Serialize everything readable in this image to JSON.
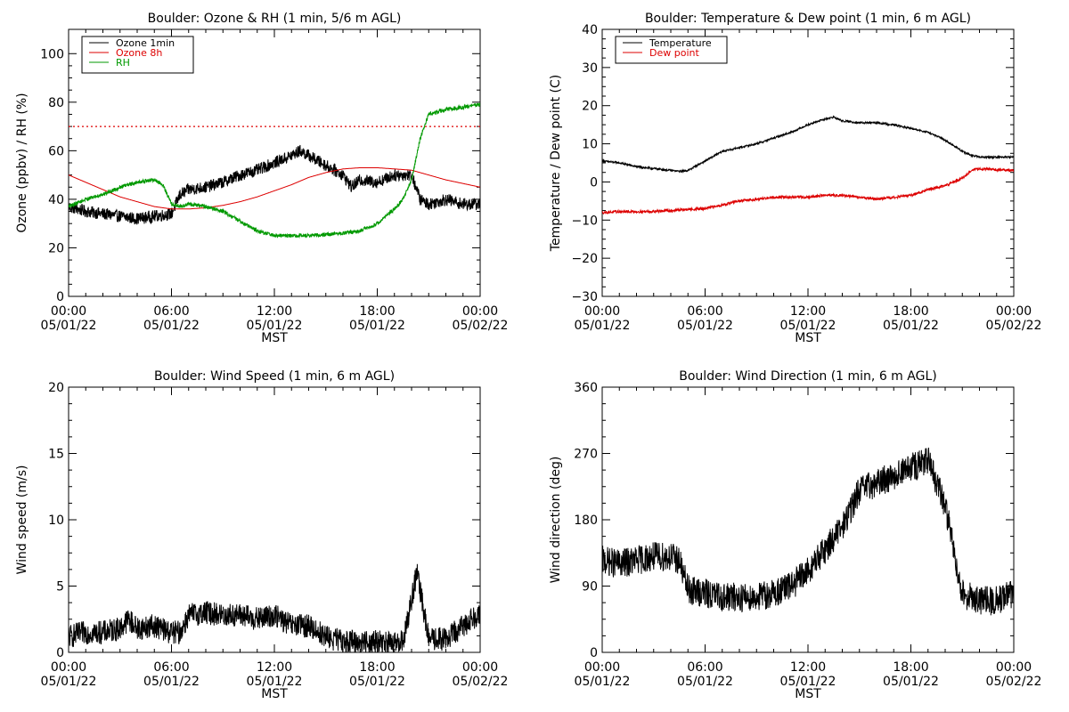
{
  "page": {
    "background": "#ffffff"
  },
  "colors": {
    "ozone_1min": "#000000",
    "ozone_8h": "#dd0000",
    "rh": "#009900",
    "temperature": "#000000",
    "dew_point": "#dd0000",
    "wind": "#000000"
  },
  "chart_data": [
    {
      "id": "ozone-rh",
      "type": "line",
      "title": "Boulder: Ozone & RH (1 min, 5/6 m AGL)",
      "xlabel": "MST",
      "ylabel": "Ozone (ppbv) / RH (%)",
      "xlim": [
        0,
        24
      ],
      "ylim": [
        0,
        110
      ],
      "yticks": [
        0,
        20,
        40,
        60,
        80,
        100
      ],
      "ytick_labels": [
        "0",
        "20",
        "40",
        "60",
        "80",
        "100"
      ],
      "xticks": [
        0,
        6,
        12,
        18,
        24
      ],
      "xtick_time": [
        "00:00",
        "06:00",
        "12:00",
        "18:00",
        "00:00"
      ],
      "xtick_date": [
        "05/01/22",
        "05/01/22",
        "05/01/22",
        "05/01/22",
        "05/02/22"
      ],
      "grid": false,
      "legend": "top-left",
      "reference_line": {
        "y": 70,
        "color": "#dd0000",
        "style": "dotted"
      },
      "series": [
        {
          "name": "Ozone 1min",
          "color": "#000000",
          "noise": 2.5,
          "x": [
            0,
            1,
            2,
            3,
            4,
            5,
            6,
            6.5,
            7,
            8,
            9,
            10,
            11,
            12,
            13,
            13.5,
            14,
            15,
            16,
            16.5,
            17,
            18,
            19,
            20,
            20.5,
            21,
            22,
            23,
            24
          ],
          "y": [
            37,
            35,
            34,
            33,
            32,
            33,
            34,
            42,
            44,
            45,
            47,
            50,
            52,
            55,
            58,
            60,
            58,
            54,
            50,
            45,
            48,
            47,
            50,
            50,
            40,
            38,
            40,
            38,
            38
          ]
        },
        {
          "name": "Ozone 8h",
          "color": "#dd0000",
          "noise": 0,
          "x": [
            0,
            1,
            2,
            3,
            4,
            5,
            6,
            7,
            8,
            9,
            10,
            11,
            12,
            13,
            14,
            15,
            16,
            17,
            18,
            19,
            20,
            21,
            22,
            23,
            24
          ],
          "y": [
            50,
            47,
            44,
            41,
            39,
            37,
            36,
            36,
            36.5,
            37.5,
            39,
            41,
            43.5,
            46,
            49,
            51,
            52.5,
            53,
            53,
            52.5,
            52,
            50,
            48,
            46.5,
            45
          ]
        },
        {
          "name": "RH",
          "color": "#009900",
          "noise": 0.8,
          "x": [
            0,
            1,
            2,
            3,
            4,
            5,
            5.5,
            6,
            6.5,
            7,
            8,
            9,
            10,
            11,
            12,
            13,
            14,
            15,
            16,
            17,
            18,
            19,
            19.5,
            20,
            20.5,
            21,
            22,
            23,
            24
          ],
          "y": [
            37,
            40,
            42,
            45,
            47,
            48,
            46,
            38,
            37,
            38,
            37,
            35,
            31,
            27,
            25,
            25,
            25,
            25.5,
            26,
            27,
            30,
            36,
            40,
            48,
            65,
            75,
            77,
            78,
            79
          ]
        }
      ]
    },
    {
      "id": "temp-dew",
      "type": "line",
      "title": "Boulder: Temperature & Dew point (1 min, 6 m AGL)",
      "xlabel": "MST",
      "ylabel": "Temperature / Dew point (C)",
      "xlim": [
        0,
        24
      ],
      "ylim": [
        -30,
        40
      ],
      "yticks": [
        -30,
        -20,
        -10,
        0,
        10,
        20,
        30,
        40
      ],
      "ytick_labels": [
        "−30",
        "−20",
        "−10",
        "0",
        "10",
        "20",
        "30",
        "40"
      ],
      "xticks": [
        0,
        6,
        12,
        18,
        24
      ],
      "xtick_time": [
        "00:00",
        "06:00",
        "12:00",
        "18:00",
        "00:00"
      ],
      "xtick_date": [
        "05/01/22",
        "05/01/22",
        "05/01/22",
        "05/01/22",
        "05/02/22"
      ],
      "grid": false,
      "legend": "top-left",
      "series": [
        {
          "name": "Temperature",
          "color": "#000000",
          "noise": 0.25,
          "x": [
            0,
            1,
            2,
            3,
            4,
            4.5,
            5,
            6,
            7,
            8,
            9,
            10,
            11,
            12,
            13,
            13.5,
            14,
            15,
            16,
            17,
            18,
            19,
            20,
            21,
            21.5,
            22,
            23,
            24
          ],
          "y": [
            5.5,
            5,
            4,
            3.5,
            3,
            2.8,
            3,
            5.5,
            8,
            9,
            10,
            11.5,
            13,
            15,
            16.5,
            17,
            16,
            15.5,
            15.5,
            15,
            14,
            13,
            11,
            8,
            7,
            6.5,
            6.5,
            6.5
          ]
        },
        {
          "name": "Dew point",
          "color": "#dd0000",
          "noise": 0.35,
          "x": [
            0,
            1,
            2,
            3,
            4,
            5,
            6,
            7,
            8,
            9,
            10,
            11,
            12,
            13,
            14,
            15,
            16,
            17,
            18,
            19,
            20,
            21,
            21.5,
            22,
            23,
            24
          ],
          "y": [
            -8,
            -7.8,
            -7.8,
            -7.7,
            -7.5,
            -7.2,
            -7,
            -6,
            -5,
            -4.5,
            -4,
            -4,
            -4,
            -3.5,
            -3.5,
            -4,
            -4.5,
            -4,
            -3.5,
            -2,
            -1,
            1,
            3,
            3.5,
            3.2,
            3
          ]
        }
      ]
    },
    {
      "id": "wind-speed",
      "type": "line",
      "title": "Boulder: Wind Speed (1 min, 6 m AGL)",
      "xlabel": "MST",
      "ylabel": "Wind speed (m/s)",
      "xlim": [
        0,
        24
      ],
      "ylim": [
        0,
        20
      ],
      "yticks": [
        0,
        5,
        10,
        15,
        20
      ],
      "ytick_labels": [
        "0",
        "5",
        "10",
        "15",
        "20"
      ],
      "xticks": [
        0,
        6,
        12,
        18,
        24
      ],
      "xtick_time": [
        "00:00",
        "06:00",
        "12:00",
        "18:00",
        "00:00"
      ],
      "xtick_date": [
        "05/01/22",
        "05/01/22",
        "05/01/22",
        "05/01/22",
        "05/02/22"
      ],
      "grid": false,
      "legend": "none",
      "series": [
        {
          "color": "#000000",
          "noise": 0.9,
          "x": [
            0,
            1,
            2,
            3,
            3.5,
            4,
            5,
            6,
            6.5,
            7,
            8,
            9,
            10,
            11,
            12,
            13,
            14,
            15,
            16,
            17,
            18,
            19,
            19.5,
            20,
            20.3,
            20.6,
            21,
            22,
            23,
            24
          ],
          "y": [
            1.2,
            1.5,
            1.5,
            1.8,
            2.5,
            1.8,
            2,
            1.5,
            1.5,
            2.8,
            3,
            2.8,
            2.8,
            2.5,
            2.8,
            2,
            2,
            1.2,
            0.8,
            0.8,
            0.8,
            0.6,
            0.8,
            4,
            6,
            4,
            1,
            1,
            2,
            3
          ]
        }
      ]
    },
    {
      "id": "wind-direction",
      "type": "line",
      "title": "Boulder: Wind Direction (1 min, 6 m AGL)",
      "xlabel": "MST",
      "ylabel": "Wind direction (deg)",
      "xlim": [
        0,
        24
      ],
      "ylim": [
        0,
        360
      ],
      "yticks": [
        0,
        90,
        180,
        270,
        360
      ],
      "ytick_labels": [
        "0",
        "90",
        "180",
        "270",
        "360"
      ],
      "xticks": [
        0,
        6,
        12,
        18,
        24
      ],
      "xtick_time": [
        "00:00",
        "06:00",
        "12:00",
        "18:00",
        "00:00"
      ],
      "xtick_date": [
        "05/01/22",
        "05/01/22",
        "05/01/22",
        "05/01/22",
        "05/02/22"
      ],
      "grid": false,
      "legend": "none",
      "series": [
        {
          "color": "#000000",
          "noise": 20,
          "x": [
            0,
            1,
            2,
            3,
            4,
            4.5,
            5,
            6,
            7,
            8,
            9,
            10,
            11,
            12,
            13,
            14,
            15,
            16,
            17,
            18,
            19,
            20,
            21,
            22,
            23,
            24
          ],
          "y": [
            125,
            120,
            125,
            130,
            130,
            125,
            85,
            80,
            75,
            75,
            75,
            80,
            90,
            110,
            140,
            170,
            220,
            230,
            240,
            250,
            260,
            200,
            80,
            70,
            70,
            80
          ]
        }
      ]
    }
  ]
}
